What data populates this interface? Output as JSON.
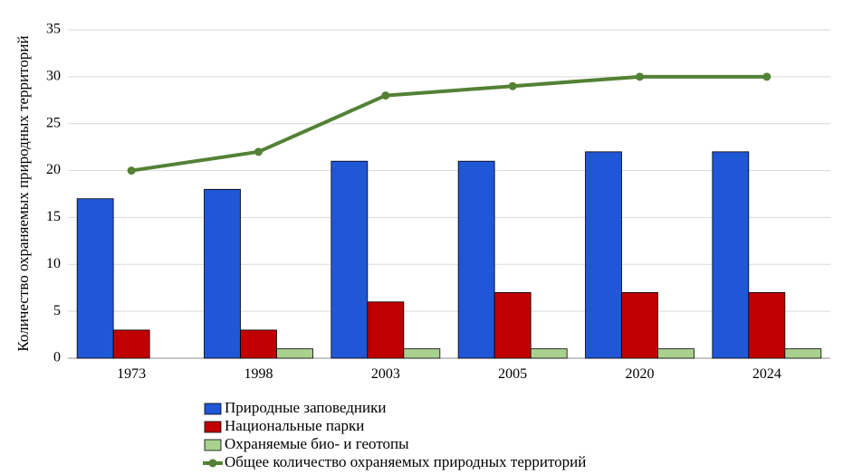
{
  "chart_data": {
    "type": "bar",
    "title": "",
    "xlabel": "",
    "ylabel": "Количество охраняемых природных территорий",
    "ylim": [
      0,
      35
    ],
    "yticks": [
      0,
      5,
      10,
      15,
      20,
      25,
      30,
      35
    ],
    "grid": true,
    "legend_position": "bottom",
    "categories": [
      "1973",
      "1998",
      "2003",
      "2005",
      "2020",
      "2024"
    ],
    "series": [
      {
        "name": "Природные заповедники",
        "kind": "bar",
        "color": "#1f57d6",
        "values": [
          17,
          18,
          21,
          21,
          22,
          22
        ]
      },
      {
        "name": "Национальные парки",
        "kind": "bar",
        "color": "#c00000",
        "values": [
          3,
          3,
          6,
          7,
          7,
          7
        ]
      },
      {
        "name": "Охраняемые био- и геотопы",
        "kind": "bar",
        "color": "#a9d18e",
        "values": [
          0,
          1,
          1,
          1,
          1,
          1
        ]
      },
      {
        "name": "Общее количество охраняемых природных территорий",
        "kind": "line",
        "color": "#538135",
        "values": [
          20,
          22,
          28,
          29,
          30,
          30
        ]
      }
    ]
  }
}
